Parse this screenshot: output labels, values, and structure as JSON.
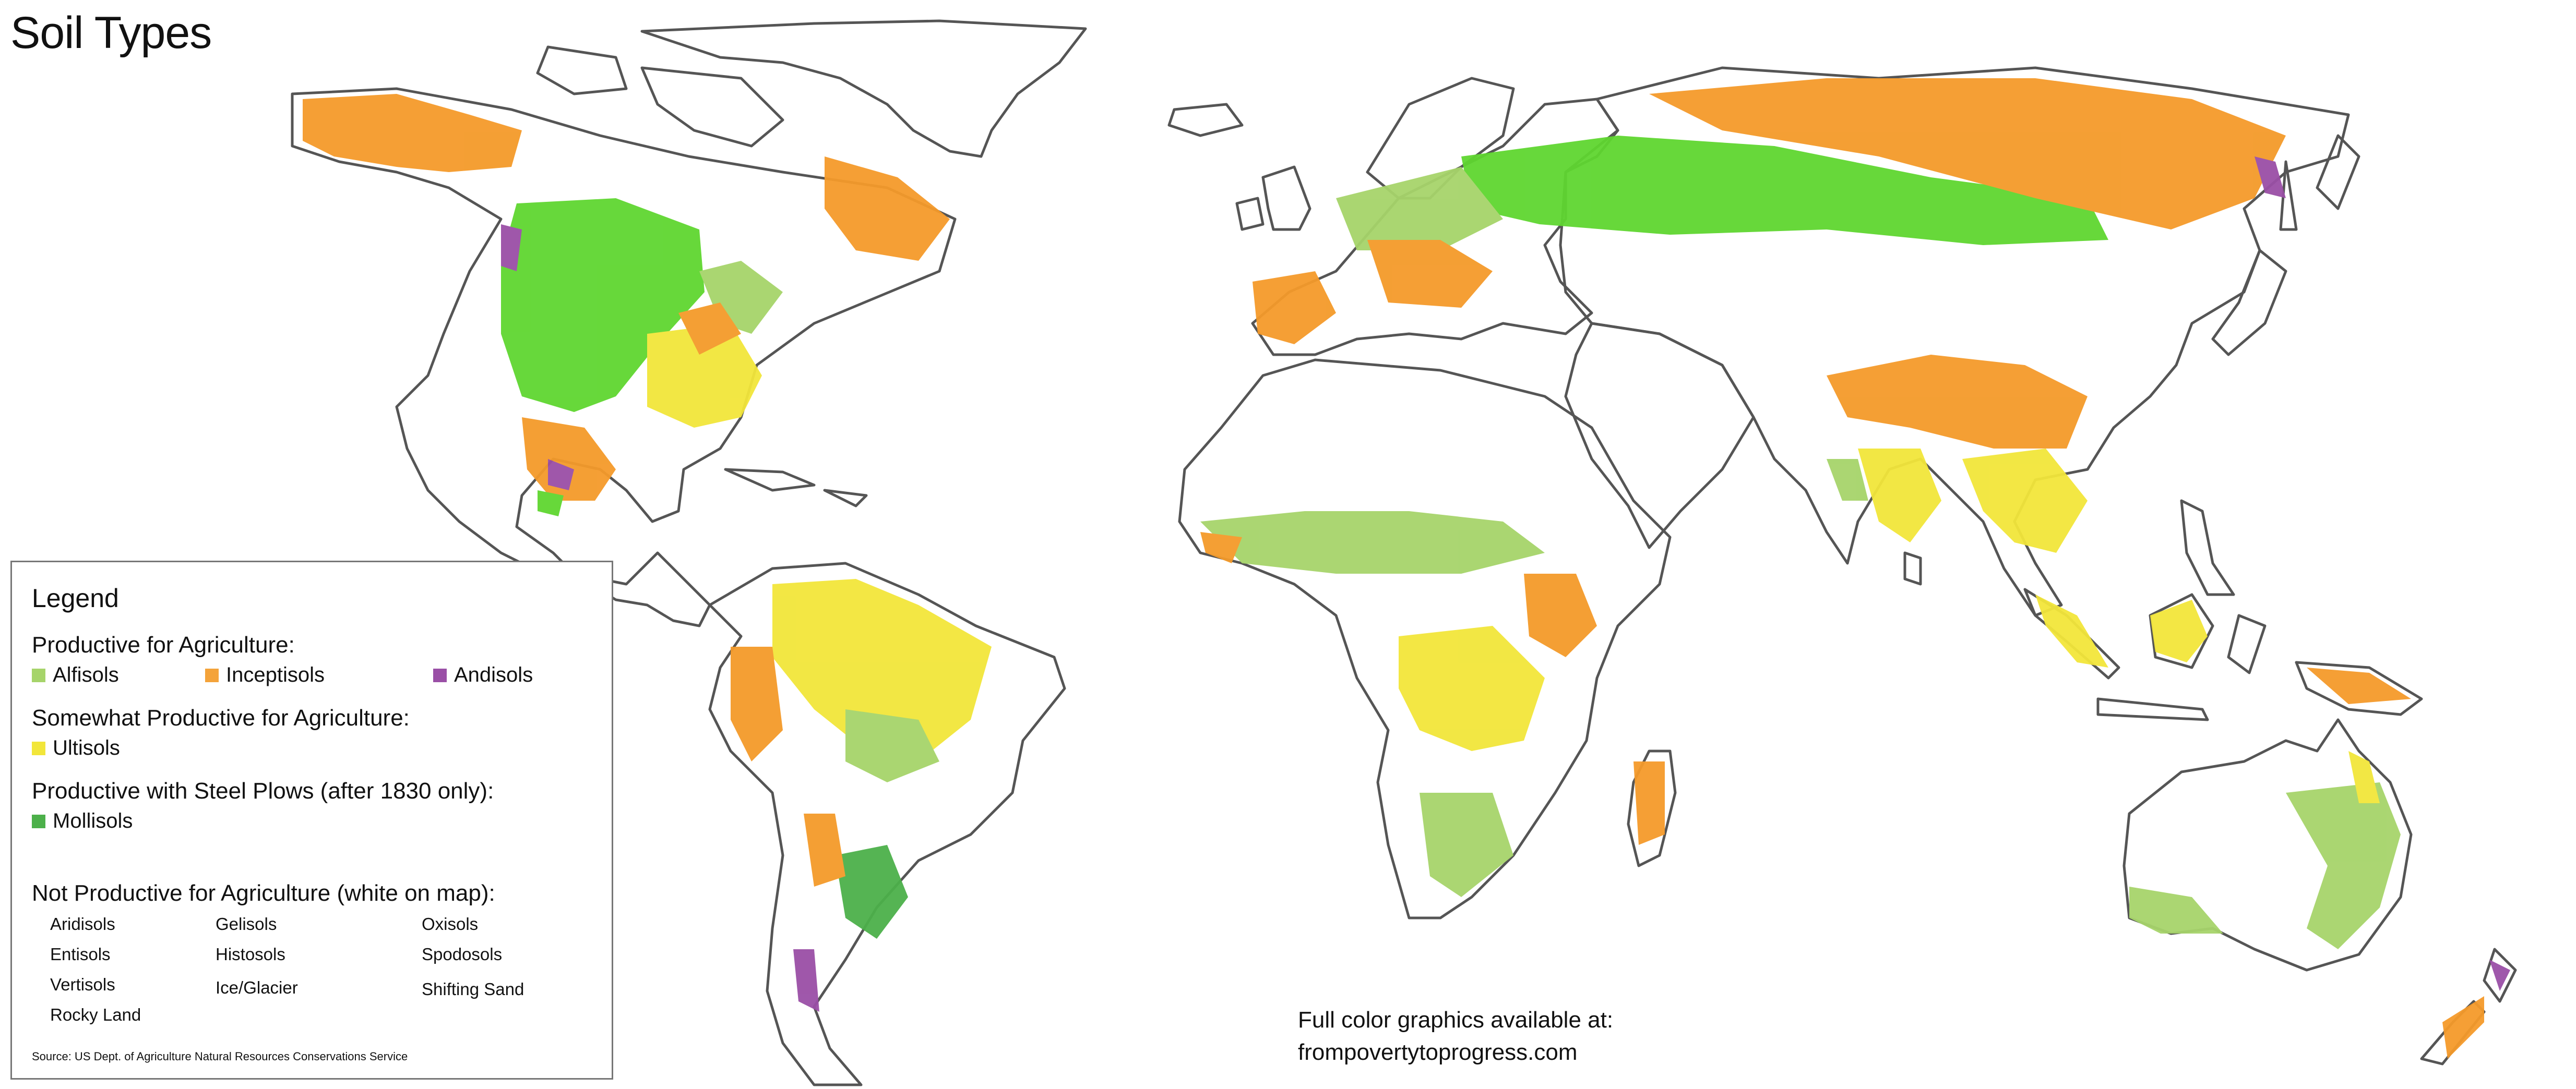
{
  "title": "Soil Types",
  "legend": {
    "heading": "Legend",
    "groups": [
      {
        "label": "Productive for Agriculture:",
        "items": [
          {
            "name": "Alfisols",
            "color": "#a6d46a"
          },
          {
            "name": "Inceptisols",
            "color": "#f4a33a"
          },
          {
            "name": "Andisols",
            "color": "#9a4fa6"
          }
        ]
      },
      {
        "label": "Somewhat Productive for Agriculture:",
        "items": [
          {
            "name": "Ultisols",
            "color": "#f2e63a"
          }
        ]
      },
      {
        "label": "Productive with Steel Plows (after 1830 only):",
        "items": [
          {
            "name": "Mollisols",
            "color": "#4cb04a"
          }
        ]
      }
    ],
    "not_productive": {
      "label": "Not Productive for Agriculture (white on map):",
      "items": [
        "Aridisols",
        "Gelisols",
        "Oxisols",
        "Entisols",
        "Histosols",
        "Spodosols",
        "Vertisols",
        "Ice/Glacier",
        "Shifting Sand",
        "Rocky Land"
      ]
    },
    "source": "Source: US Dept. of Agriculture Natural Resources Conservations Service"
  },
  "credit": {
    "line1": "Full color graphics available at:",
    "line2": "frompovertytoprogress.com"
  },
  "map_colors": {
    "mollisols_bright": "#5fd630",
    "inceptisols": "#f49a2a",
    "ultisols": "#f2e63a",
    "alfisols": "#a6d46a",
    "andisols": "#9a4fa6",
    "border": "#555555"
  }
}
